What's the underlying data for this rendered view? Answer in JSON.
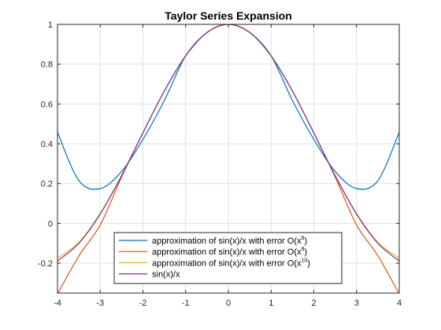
{
  "chart_data": {
    "type": "line",
    "title": "Taylor Series Expansion",
    "xlabel": "",
    "ylabel": "",
    "xlim": [
      -4,
      4
    ],
    "ylim": [
      -0.35,
      1
    ],
    "xticks": [
      -4,
      -3,
      -2,
      -1,
      0,
      1,
      2,
      3,
      4
    ],
    "xtick_labels": [
      "-4",
      "-3",
      "-2",
      "-1",
      "0",
      "1",
      "2",
      "3",
      "4"
    ],
    "yticks": [
      -0.2,
      0,
      0.2,
      0.4,
      0.6,
      0.8,
      1
    ],
    "ytick_labels": [
      "-0.2",
      "0",
      "0.2",
      "0.4",
      "0.6",
      "0.8",
      "1"
    ],
    "grid": true,
    "legend_position": "bottom-center",
    "x": [
      -4.0,
      -3.5,
      -3.0,
      -2.5,
      -2.0,
      -1.5,
      -1.0,
      -0.5,
      0.0,
      0.5,
      1.0,
      1.5,
      2.0,
      2.5,
      3.0,
      3.5,
      4.0
    ],
    "series": [
      {
        "name_parts": [
          "approximation  of  sin(x)/x  with  error  O(x",
          "6",
          ")"
        ],
        "color": "#0072BD",
        "values": [
          0.4578,
          0.2148,
          0.175,
          0.2611,
          0.4222,
          0.6172,
          0.8417,
          0.9594,
          1.0,
          0.9594,
          0.8417,
          0.6172,
          0.4222,
          0.2611,
          0.175,
          0.2148,
          0.4578
        ]
      },
      {
        "name_parts": [
          "approximation  of  sin(x)/x  with  error  O(x",
          "8",
          ")"
        ],
        "color": "#D95319",
        "values": [
          -0.3549,
          -0.163,
          -0.0077,
          0.2327,
          0.4542,
          0.6645,
          0.8415,
          0.9589,
          1.0,
          0.9589,
          0.8415,
          0.6645,
          0.4542,
          0.2327,
          -0.0077,
          -0.163,
          -0.3549
        ]
      },
      {
        "name_parts": [
          "approximation  of  sin(x)/x  with  error  O(x",
          "10",
          ")"
        ],
        "color": "#EDB120",
        "values": [
          -0.1745,
          -0.0955,
          0.0504,
          0.2406,
          0.4546,
          0.665,
          0.8415,
          0.9589,
          1.0,
          0.9589,
          0.8415,
          0.665,
          0.4546,
          0.2406,
          0.0504,
          -0.0955,
          -0.1745
        ]
      },
      {
        "name_parts": [
          "sin(x)/x",
          "",
          ""
        ],
        "color": "#7E2F8E",
        "values": [
          -0.1892,
          -0.1002,
          0.047,
          0.2394,
          0.4546,
          0.665,
          0.8415,
          0.9589,
          1.0,
          0.9589,
          0.8415,
          0.665,
          0.4546,
          0.2394,
          0.047,
          -0.1002,
          -0.1892
        ]
      }
    ]
  }
}
